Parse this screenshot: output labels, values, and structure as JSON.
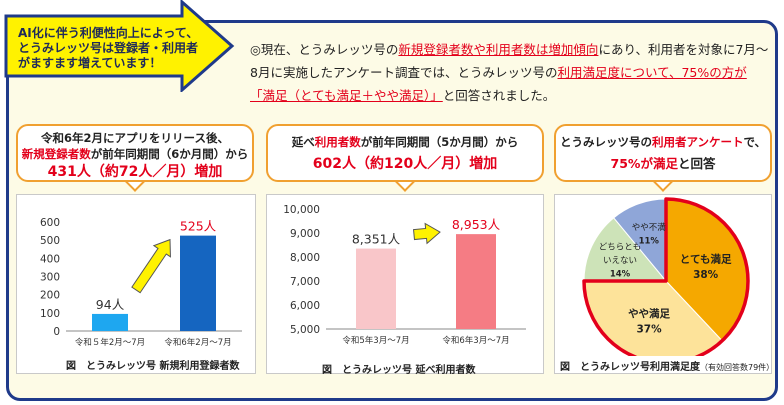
{
  "callout": {
    "lines": [
      "AI化に伴う利便性向上によって、",
      "とうみレッツ号は登録者・利用者",
      "がますます増えています！"
    ]
  },
  "headline": {
    "p1": "◎現在、とうみレッツ号の",
    "p2": "新規登録者数や利用者数は増加傾向",
    "p3": "にあり、利用者を対象に7月～8月に実施したアンケート調査では、とうみレッツ号の",
    "p4": "利用満足度について、75%の方が「満足（とても満足＋やや満足）」",
    "p5": "と回答されました。"
  },
  "bubbles": {
    "b1": {
      "l1": "令和6年2月にアプリをリリース後、",
      "l2a": "新規登録者数",
      "l2b": "が前年同期間（6か月間）から",
      "big": "431人（約72人／月）増加"
    },
    "b2": {
      "l1a": "延べ",
      "l1b": "利用者数",
      "l1c": "が前年同期間（5か月間）から",
      "big": "602人（約120人／月）増加"
    },
    "b3": {
      "l1a": "とうみレッツ号の",
      "l1b": "利用者アンケート",
      "l1c": "で、",
      "l2a": "75%が満足",
      "l2b": "と回答"
    }
  },
  "captions": {
    "c1": "図　とうみレッツ号 新規利用登録者数",
    "c2": "図　とうみレッツ号 延べ利用者数",
    "c3": "図　とうみレッツ号利用満足度",
    "c3small": "（有効回答数79件）"
  },
  "colors": {
    "frame": "#1f3a8a",
    "accent_red": "#e3001b",
    "bubble_border": "#f0a030",
    "arrow_fill": "#fff200"
  },
  "chart_data": [
    {
      "type": "bar",
      "categories": [
        "令和５年2月～7月",
        "令和6年2月～7月"
      ],
      "values": [
        94,
        525
      ],
      "value_labels": [
        "94人",
        "525人"
      ],
      "colors": [
        "#1ea7f0",
        "#1565c0"
      ],
      "ylim": [
        0,
        600
      ],
      "yticks": [
        0,
        100,
        200,
        300,
        400,
        500,
        600
      ],
      "grid": false
    },
    {
      "type": "bar",
      "categories": [
        "令和5年3月～7月",
        "令和6年3月～7月"
      ],
      "values": [
        8351,
        8953
      ],
      "value_labels": [
        "8,351人",
        "8,953人"
      ],
      "colors": [
        "#f9c6c9",
        "#f57c84"
      ],
      "ylim": [
        5000,
        10000
      ],
      "yticks": [
        5000,
        6000,
        7000,
        8000,
        9000,
        10000
      ],
      "ytick_labels": [
        "5,000",
        "6,000",
        "7,000",
        "8,000",
        "9,000",
        "10,000"
      ],
      "grid": false
    },
    {
      "type": "pie",
      "slices": [
        {
          "label": "とても満足",
          "pct_label": "38%",
          "value": 38,
          "color": "#f5a800"
        },
        {
          "label": "やや満足",
          "pct_label": "37%",
          "value": 37,
          "color": "#fde39a"
        },
        {
          "label_lines": [
            "どちらとも",
            "いえない"
          ],
          "pct_label": "14%",
          "value": 14,
          "color": "#cde3b8"
        },
        {
          "label": "やや不満",
          "pct_label": "11%",
          "value": 11,
          "color": "#8fa6d8"
        }
      ]
    }
  ]
}
